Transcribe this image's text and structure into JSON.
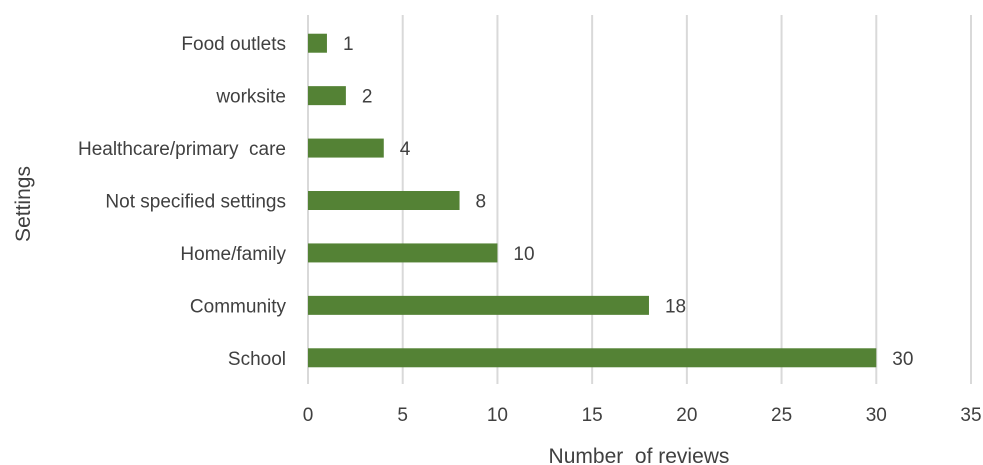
{
  "chart_data": {
    "type": "bar",
    "orientation": "horizontal",
    "categories": [
      "Food outlets",
      "worksite",
      "Healthcare/primary  care",
      "Not specified settings",
      "Home/family",
      "Community",
      "School"
    ],
    "values": [
      1,
      2,
      4,
      8,
      10,
      18,
      30
    ],
    "data_labels": [
      "1",
      "2",
      "4",
      "8",
      "10",
      "18",
      "30"
    ],
    "xlabel": "Number  of reviews",
    "ylabel": "Settings",
    "xlim": [
      0,
      35
    ],
    "x_ticks": [
      0,
      5,
      10,
      15,
      20,
      25,
      30,
      35
    ],
    "x_tick_labels": [
      "0",
      "5",
      "10",
      "15",
      "20",
      "25",
      "30",
      "35"
    ],
    "grid": "vertical",
    "legend": "none",
    "colors": {
      "bar": "#548235",
      "grid": "#d9d9d9",
      "text": "#404040"
    }
  }
}
